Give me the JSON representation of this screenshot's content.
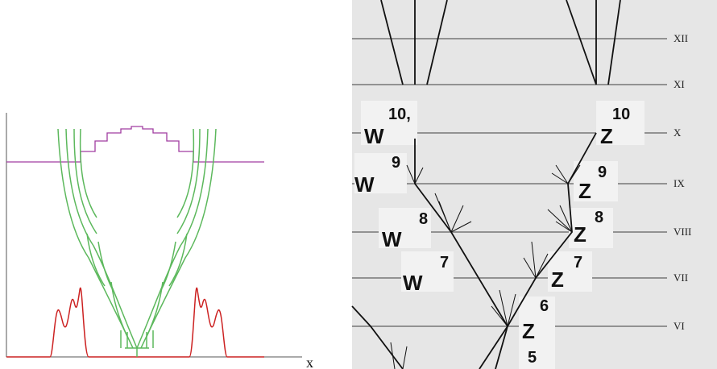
{
  "left_panel": {
    "x_axis_label": "x"
  },
  "right_panel": {
    "levels": [
      "XII",
      "XI",
      "X",
      "IX",
      "VIII",
      "VII",
      "VI"
    ],
    "w_labels": [
      {
        "letter": "W",
        "index": "10,"
      },
      {
        "letter": "W",
        "index": "9"
      },
      {
        "letter": "W",
        "index": "8"
      },
      {
        "letter": "W",
        "index": "7"
      }
    ],
    "z_labels": [
      {
        "letter": "Z",
        "index": "10"
      },
      {
        "letter": "Z",
        "index": "9"
      },
      {
        "letter": "Z",
        "index": "8"
      },
      {
        "letter": "Z",
        "index": "7"
      },
      {
        "letter": "Z",
        "index": "6"
      }
    ],
    "partial_label": "5"
  }
}
